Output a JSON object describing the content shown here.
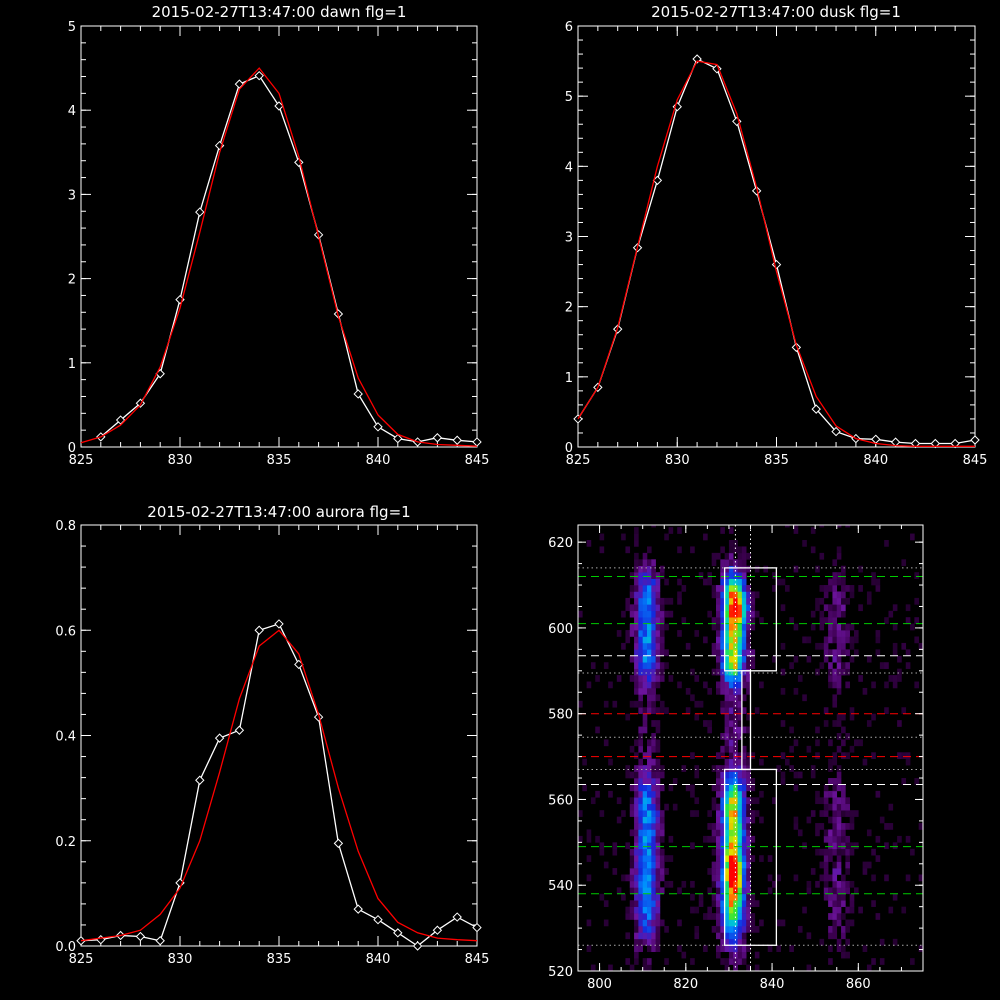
{
  "chart_data": [
    {
      "type": "line",
      "title": "2015-02-27T13:47:00 dawn flg=1",
      "xlim": [
        825,
        845
      ],
      "ylim": [
        0,
        5
      ],
      "xticks": [
        "825",
        "830",
        "835",
        "840",
        "845"
      ],
      "yticks": [
        "0",
        "1",
        "2",
        "3",
        "4",
        "5"
      ],
      "series": [
        {
          "color": "#ffffff",
          "marker": "diamond",
          "x": [
            826,
            827,
            828,
            829,
            830,
            831,
            832,
            833,
            834,
            835,
            836,
            837,
            838,
            839,
            840,
            841,
            842,
            843,
            844,
            845
          ],
          "y": [
            0.12,
            0.32,
            0.52,
            0.87,
            1.75,
            2.79,
            3.58,
            4.31,
            4.41,
            4.05,
            3.38,
            2.52,
            1.58,
            0.63,
            0.24,
            0.1,
            0.06,
            0.11,
            0.08,
            0.06
          ]
        },
        {
          "color": "#ff0000",
          "marker": "none",
          "x": [
            825,
            826,
            827,
            828,
            829,
            830,
            831,
            832,
            833,
            834,
            835,
            836,
            837,
            838,
            839,
            840,
            841,
            842,
            843,
            844,
            845
          ],
          "y": [
            0.05,
            0.12,
            0.26,
            0.5,
            0.95,
            1.65,
            2.55,
            3.5,
            4.25,
            4.5,
            4.2,
            3.45,
            2.5,
            1.55,
            0.82,
            0.38,
            0.15,
            0.06,
            0.03,
            0.02,
            0.01
          ]
        }
      ]
    },
    {
      "type": "line",
      "title": "2015-02-27T13:47:00 dusk flg=1",
      "xlim": [
        825,
        845
      ],
      "ylim": [
        0,
        6
      ],
      "xticks": [
        "825",
        "830",
        "835",
        "840",
        "845"
      ],
      "yticks": [
        "0",
        "1",
        "2",
        "3",
        "4",
        "5",
        "6"
      ],
      "series": [
        {
          "color": "#ffffff",
          "marker": "diamond",
          "x": [
            825,
            826,
            827,
            828,
            829,
            830,
            831,
            832,
            833,
            834,
            835,
            836,
            837,
            838,
            839,
            840,
            841,
            842,
            843,
            844,
            845
          ],
          "y": [
            0.4,
            0.85,
            1.68,
            2.84,
            3.8,
            4.85,
            5.53,
            5.39,
            4.64,
            3.65,
            2.6,
            1.42,
            0.54,
            0.22,
            0.12,
            0.11,
            0.07,
            0.05,
            0.05,
            0.05,
            0.1
          ]
        },
        {
          "color": "#ff0000",
          "marker": "none",
          "x": [
            825,
            826,
            827,
            828,
            829,
            830,
            831,
            832,
            833,
            834,
            835,
            836,
            837,
            838,
            839,
            840,
            841,
            842,
            843,
            844,
            845
          ],
          "y": [
            0.4,
            0.85,
            1.7,
            2.85,
            4.0,
            4.95,
            5.5,
            5.45,
            4.75,
            3.7,
            2.5,
            1.45,
            0.72,
            0.3,
            0.12,
            0.05,
            0.02,
            0.01,
            0.01,
            0.01,
            0.01
          ]
        }
      ]
    },
    {
      "type": "line",
      "title": "2015-02-27T13:47:00 aurora flg=1",
      "xlim": [
        825,
        845
      ],
      "ylim": [
        0,
        0.8
      ],
      "xticks": [
        "825",
        "830",
        "835",
        "840",
        "845"
      ],
      "yticks": [
        "0.0",
        "0.2",
        "0.4",
        "0.6",
        "0.8"
      ],
      "series": [
        {
          "color": "#ffffff",
          "marker": "diamond",
          "x": [
            825,
            826,
            827,
            828,
            829,
            830,
            831,
            832,
            833,
            834,
            835,
            836,
            837,
            838,
            839,
            840,
            841,
            842,
            843,
            844,
            845
          ],
          "y": [
            0.01,
            0.012,
            0.02,
            0.018,
            0.01,
            0.12,
            0.315,
            0.395,
            0.41,
            0.6,
            0.612,
            0.535,
            0.435,
            0.195,
            0.07,
            0.05,
            0.025,
            0.0,
            0.03,
            0.055,
            0.035
          ]
        },
        {
          "color": "#ff0000",
          "marker": "none",
          "x": [
            825,
            826,
            827,
            828,
            829,
            830,
            831,
            832,
            833,
            834,
            835,
            836,
            837,
            838,
            839,
            840,
            841,
            842,
            843,
            844,
            845
          ],
          "y": [
            0.01,
            0.015,
            0.02,
            0.03,
            0.06,
            0.11,
            0.2,
            0.33,
            0.47,
            0.57,
            0.6,
            0.555,
            0.44,
            0.3,
            0.18,
            0.09,
            0.045,
            0.025,
            0.015,
            0.012,
            0.01
          ]
        }
      ]
    },
    {
      "type": "heatmap",
      "xlim": [
        795,
        875
      ],
      "ylim": [
        520,
        624
      ],
      "xticks": [
        "800",
        "820",
        "840",
        "860"
      ],
      "yticks": [
        "520",
        "540",
        "560",
        "580",
        "600",
        "620"
      ],
      "emission_columns_x": [
        811,
        831,
        855
      ],
      "emission_column_strength": [
        0.55,
        1.0,
        0.15
      ],
      "emission_bands_y": [
        [
          587,
          613
        ],
        [
          528,
          566
        ]
      ],
      "hot_spots": [
        [
          831,
          543
        ],
        [
          833,
          605
        ]
      ],
      "boxes": [
        {
          "x": [
            829,
            841
          ],
          "y": [
            526,
            567
          ],
          "color": "#ffffff"
        },
        {
          "x": [
            829,
            841
          ],
          "y": [
            590,
            614
          ],
          "color": "#ffffff"
        },
        {
          "x": [
            833,
            835
          ],
          "y": [
            567,
            590
          ],
          "color": "#ffffff"
        }
      ],
      "hlines": [
        {
          "y": 612,
          "color": "#00cc00",
          "style": "dashed"
        },
        {
          "y": 601,
          "color": "#00cc00",
          "style": "dashed"
        },
        {
          "y": 593.5,
          "color": "#ffffff",
          "style": "dashed"
        },
        {
          "y": 580,
          "color": "#ff0000",
          "style": "dashed"
        },
        {
          "y": 570,
          "color": "#ff0000",
          "style": "dashed"
        },
        {
          "y": 563.5,
          "color": "#ffffff",
          "style": "dashed"
        },
        {
          "y": 549,
          "color": "#00cc00",
          "style": "dashed"
        },
        {
          "y": 538,
          "color": "#00cc00",
          "style": "dashed"
        },
        {
          "y": 614,
          "color": "#aaaaaa",
          "style": "dotted"
        },
        {
          "y": 589.5,
          "color": "#aaaaaa",
          "style": "dotted"
        },
        {
          "y": 574.5,
          "color": "#aaaaaa",
          "style": "dotted"
        },
        {
          "y": 567,
          "color": "#aaaaaa",
          "style": "dotted"
        },
        {
          "y": 526,
          "color": "#aaaaaa",
          "style": "dotted"
        }
      ],
      "vlines": [
        {
          "x": 831.5,
          "color": "#ffffff",
          "style": "dotted"
        },
        {
          "x": 835,
          "color": "#ffffff",
          "style": "dotted"
        }
      ]
    }
  ]
}
